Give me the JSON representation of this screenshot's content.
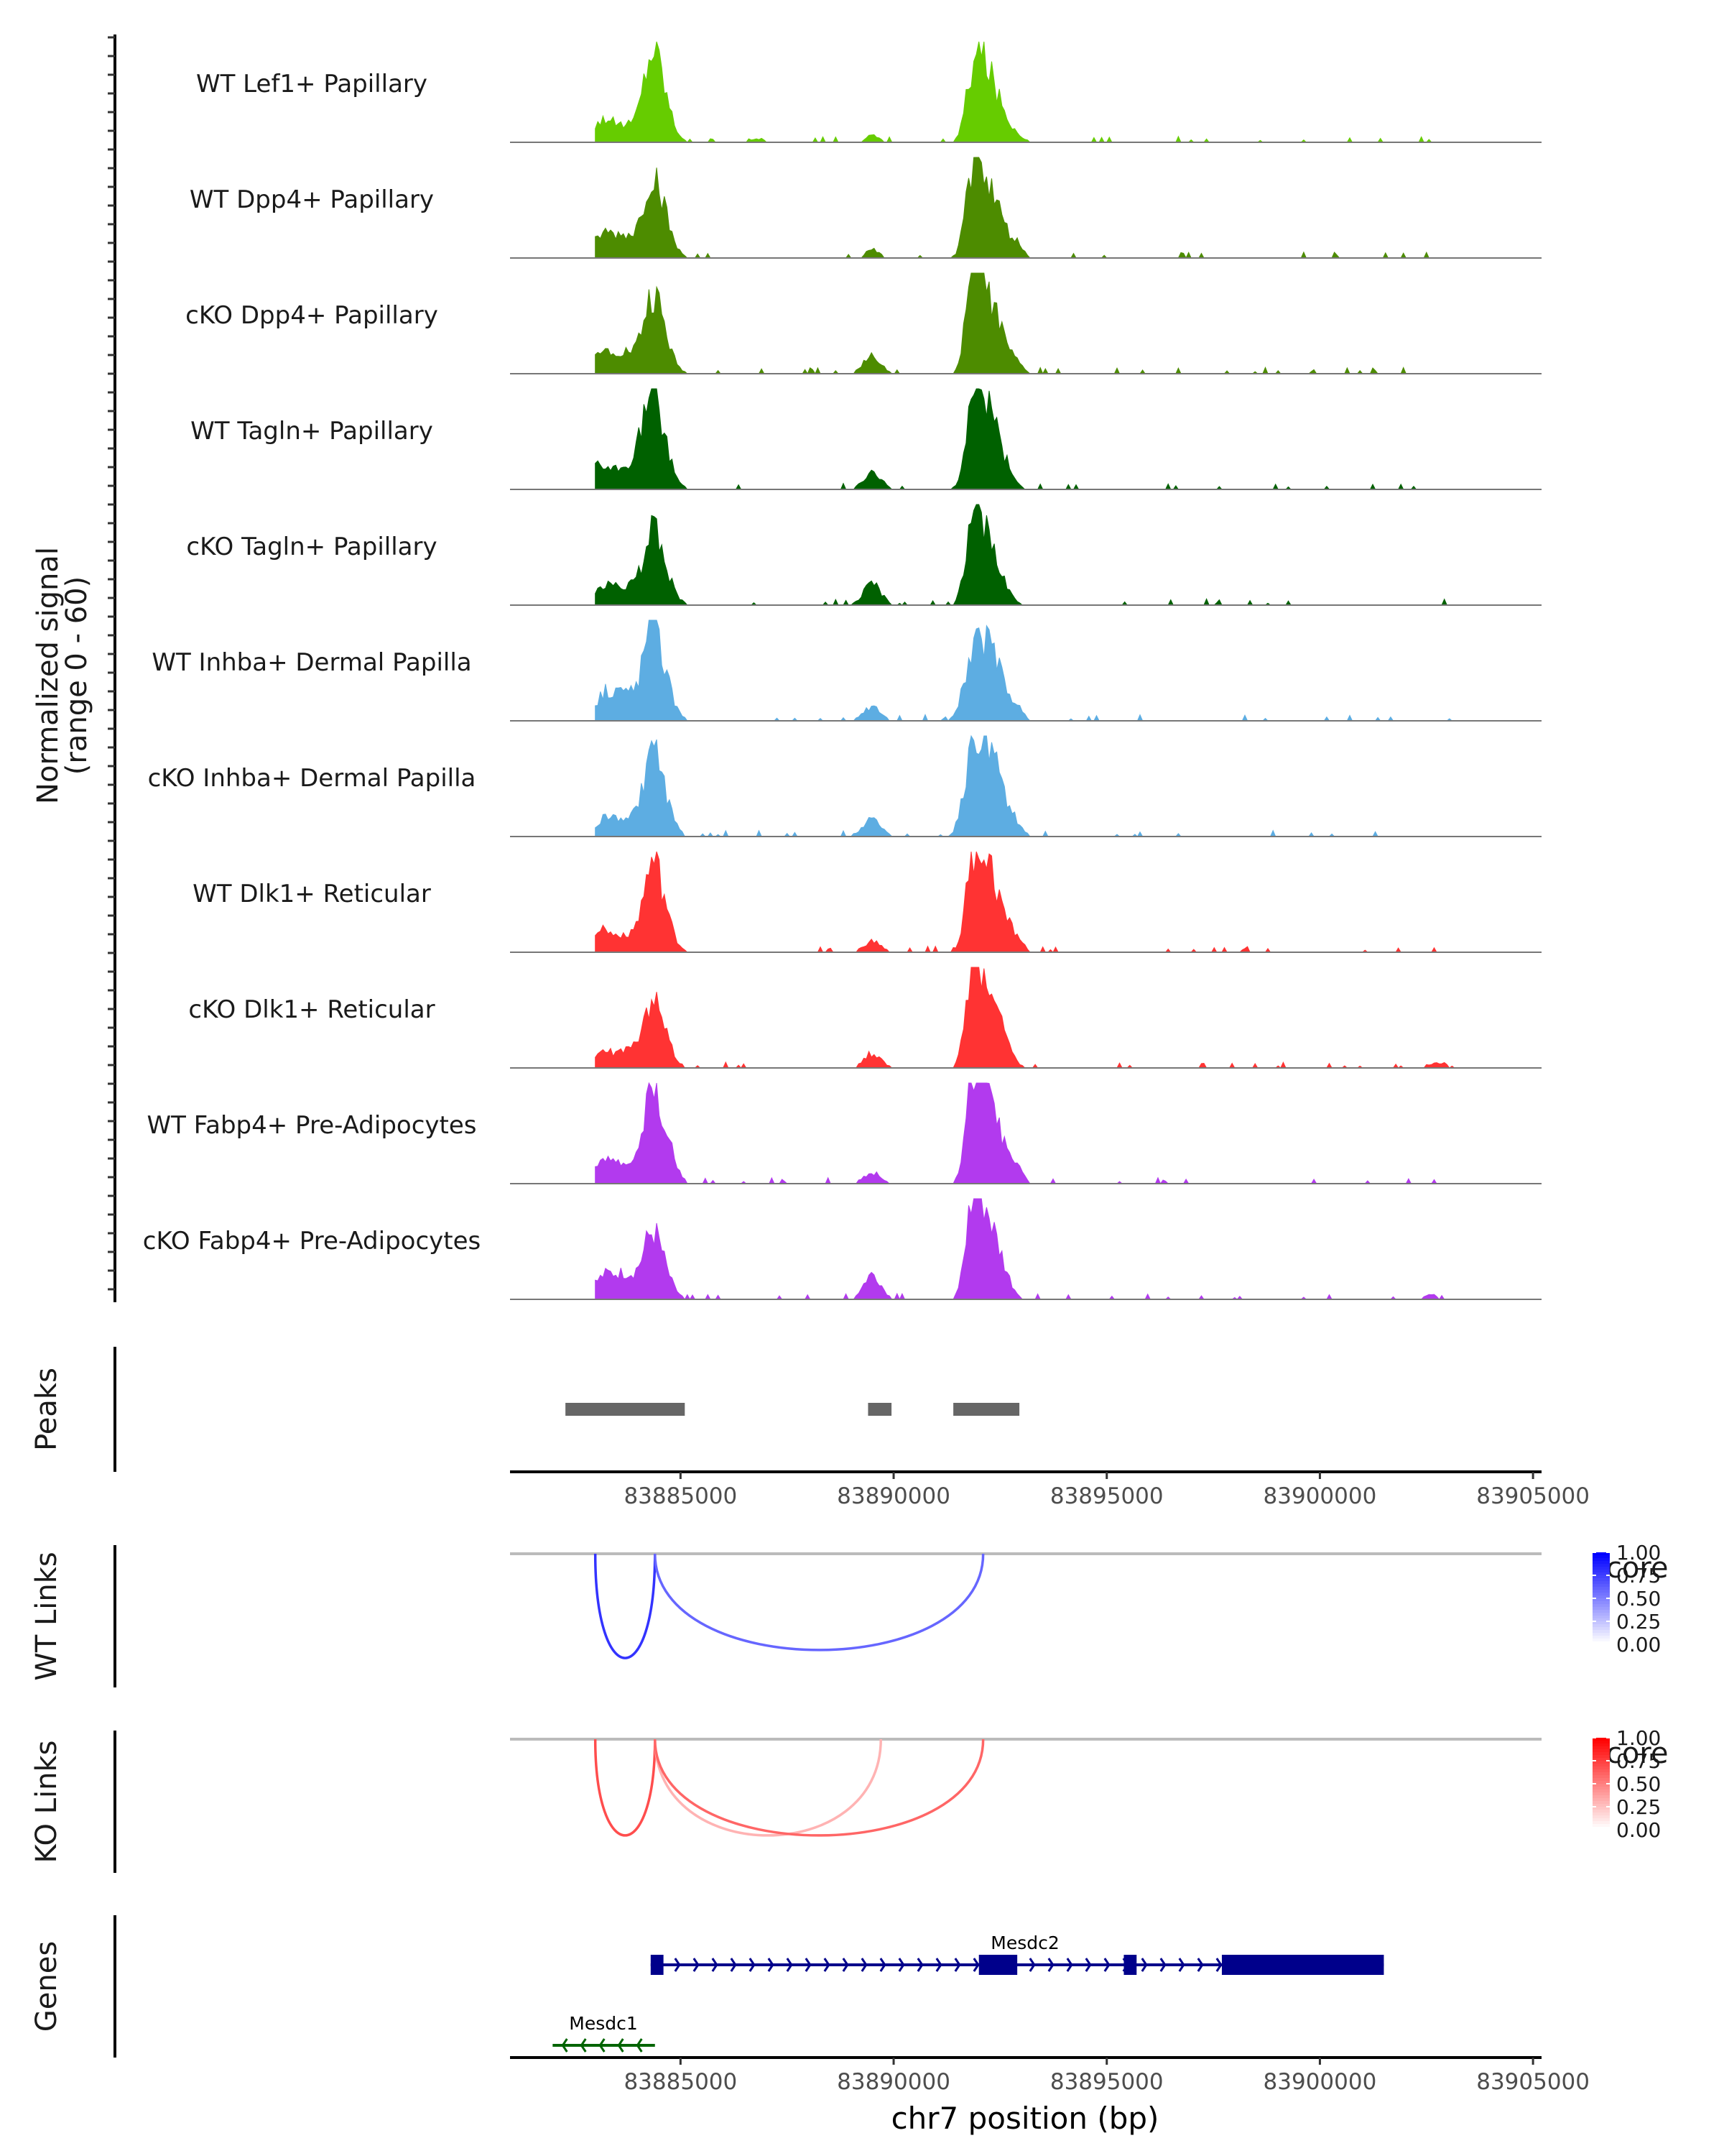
{
  "chart_data": {
    "type": "genome-tracks",
    "chromosome": "chr7",
    "xlim": [
      83881000,
      83905200
    ],
    "xticks": [
      83885000,
      83890000,
      83895000,
      83900000,
      83905000
    ],
    "xtick_labels": [
      "83885000",
      "83890000",
      "83895000",
      "83900000",
      "83905000"
    ],
    "xlabel": "chr7 position (bp)",
    "coverage": {
      "ylabel_line1": "Normalized signal",
      "ylabel_line2": "(range 0 - 60)",
      "ylim": [
        0,
        60
      ],
      "tracks": [
        {
          "label": "WT Lef1+ Papillary",
          "color": "#66CC00",
          "sparse": 0,
          "peaks": [
            [
              83882700,
              250,
              6
            ],
            [
              83883200,
              200,
              10
            ],
            [
              83883700,
              300,
              9
            ],
            [
              83884300,
              200,
              30
            ],
            [
              83884500,
              250,
              28
            ],
            [
              83886800,
              200,
              2
            ],
            [
              83889500,
              150,
              4
            ],
            [
              83891800,
              150,
              20
            ],
            [
              83892050,
              200,
              36
            ],
            [
              83892400,
              250,
              22
            ],
            [
              83892900,
              150,
              3
            ]
          ]
        },
        {
          "label": "WT Dpp4+ Papillary",
          "color": "#4D8C00",
          "sparse": 1,
          "peaks": [
            [
              83882700,
              250,
              6
            ],
            [
              83883200,
              200,
              10
            ],
            [
              83883700,
              300,
              12
            ],
            [
              83884300,
              200,
              25
            ],
            [
              83884500,
              250,
              24
            ],
            [
              83889500,
              150,
              5
            ],
            [
              83891800,
              150,
              30
            ],
            [
              83892050,
              200,
              36
            ],
            [
              83892400,
              250,
              24
            ],
            [
              83892900,
              150,
              6
            ]
          ]
        },
        {
          "label": "cKO Dpp4+ Papillary",
          "color": "#4D8C00",
          "sparse": 2,
          "peaks": [
            [
              83882700,
              250,
              6
            ],
            [
              83883200,
              200,
              9
            ],
            [
              83883700,
              300,
              12
            ],
            [
              83884300,
              200,
              25
            ],
            [
              83884500,
              250,
              22
            ],
            [
              83889500,
              200,
              10
            ],
            [
              83891800,
              150,
              32
            ],
            [
              83892050,
              200,
              38
            ],
            [
              83892400,
              250,
              26
            ],
            [
              83892900,
              150,
              4
            ]
          ]
        },
        {
          "label": "WT Tagln+ Papillary",
          "color": "#006100",
          "sparse": 3,
          "peaks": [
            [
              83882600,
              200,
              6
            ],
            [
              83883000,
              200,
              10
            ],
            [
              83883500,
              300,
              10
            ],
            [
              83884000,
              200,
              12
            ],
            [
              83884300,
              200,
              28
            ],
            [
              83884500,
              250,
              27
            ],
            [
              83889500,
              200,
              10
            ],
            [
              83891800,
              150,
              30
            ],
            [
              83892050,
              200,
              36
            ],
            [
              83892400,
              250,
              26
            ]
          ]
        },
        {
          "label": "cKO Tagln+ Papillary",
          "color": "#006100",
          "sparse": 4,
          "peaks": [
            [
              83882600,
              200,
              6
            ],
            [
              83883200,
              200,
              8
            ],
            [
              83883700,
              300,
              10
            ],
            [
              83884300,
              200,
              22
            ],
            [
              83884500,
              250,
              24
            ],
            [
              83889500,
              200,
              12
            ],
            [
              83891800,
              150,
              30
            ],
            [
              83892050,
              200,
              36
            ],
            [
              83892400,
              250,
              18
            ]
          ]
        },
        {
          "label": "WT Inhba+ Dermal Papilla",
          "color": "#5DADE2",
          "sparse": 5,
          "peaks": [
            [
              83882600,
              200,
              4
            ],
            [
              83883200,
              200,
              12
            ],
            [
              83883700,
              300,
              15
            ],
            [
              83884300,
              200,
              30
            ],
            [
              83884500,
              250,
              28
            ],
            [
              83889500,
              200,
              8
            ],
            [
              83891800,
              200,
              22
            ],
            [
              83892100,
              250,
              26
            ],
            [
              83892400,
              250,
              22
            ],
            [
              83892900,
              150,
              6
            ]
          ]
        },
        {
          "label": "cKO Inhba+ Dermal Papilla",
          "color": "#5DADE2",
          "sparse": 6,
          "peaks": [
            [
              83882500,
              150,
              4
            ],
            [
              83883200,
              200,
              8
            ],
            [
              83883700,
              300,
              10
            ],
            [
              83884300,
              200,
              28
            ],
            [
              83884500,
              250,
              24
            ],
            [
              83889500,
              200,
              10
            ],
            [
              83891700,
              150,
              20
            ],
            [
              83892000,
              200,
              42
            ],
            [
              83892350,
              250,
              38
            ],
            [
              83892900,
              150,
              6
            ]
          ]
        },
        {
          "label": "WT Dlk1+ Reticular",
          "color": "#FF3333",
          "sparse": 7,
          "peaks": [
            [
              83882500,
              150,
              3
            ],
            [
              83883100,
              200,
              12
            ],
            [
              83883700,
              300,
              10
            ],
            [
              83884300,
              200,
              28
            ],
            [
              83884500,
              250,
              26
            ],
            [
              83889500,
              200,
              6
            ],
            [
              83891800,
              150,
              28
            ],
            [
              83892050,
              200,
              42
            ],
            [
              83892400,
              250,
              28
            ],
            [
              83892900,
              150,
              6
            ]
          ]
        },
        {
          "label": "cKO Dlk1+ Reticular",
          "color": "#FF3333",
          "sparse": 8,
          "peaks": [
            [
              83882500,
              150,
              3
            ],
            [
              83883100,
              200,
              8
            ],
            [
              83883700,
              300,
              10
            ],
            [
              83884300,
              200,
              20
            ],
            [
              83884500,
              250,
              20
            ],
            [
              83889500,
              200,
              8
            ],
            [
              83891800,
              150,
              30
            ],
            [
              83892050,
              200,
              38
            ],
            [
              83892400,
              250,
              26
            ],
            [
              83902800,
              200,
              3
            ]
          ]
        },
        {
          "label": "WT Fabp4+ Pre-Adipocytes",
          "color": "#B23AEE",
          "sparse": 9,
          "peaks": [
            [
              83882500,
              150,
              3
            ],
            [
              83883200,
              200,
              12
            ],
            [
              83883700,
              300,
              10
            ],
            [
              83884300,
              200,
              34
            ],
            [
              83884550,
              250,
              28
            ],
            [
              83889500,
              200,
              6
            ],
            [
              83891800,
              150,
              30
            ],
            [
              83892050,
              200,
              46
            ],
            [
              83892400,
              250,
              30
            ],
            [
              83892900,
              150,
              6
            ]
          ]
        },
        {
          "label": "cKO Fabp4+ Pre-Adipocytes",
          "color": "#B23AEE",
          "sparse": 10,
          "peaks": [
            [
              83882800,
              150,
              6
            ],
            [
              83883200,
              200,
              10
            ],
            [
              83883700,
              300,
              14
            ],
            [
              83884300,
              200,
              22
            ],
            [
              83884500,
              250,
              18
            ],
            [
              83889500,
              200,
              14
            ],
            [
              83891800,
              150,
              32
            ],
            [
              83892050,
              200,
              40
            ],
            [
              83892400,
              250,
              26
            ],
            [
              83902600,
              150,
              3
            ]
          ]
        }
      ]
    },
    "peaks": {
      "label": "Peaks",
      "color": "#666666",
      "regions": [
        [
          83882300,
          83885100
        ],
        [
          83889400,
          83889950
        ],
        [
          83891400,
          83892950
        ]
      ]
    },
    "links": [
      {
        "label": "WT Links",
        "legend_title": "score",
        "legend_ticks": [
          "1.00",
          "0.75",
          "0.50",
          "0.25",
          "0.00"
        ],
        "low_color": "#FFFFFF",
        "high_color": "#0000FF",
        "arcs": [
          [
            83883000,
            83884400,
            0.8,
            0.78
          ],
          [
            83884400,
            83892100,
            0.6,
            0.72
          ]
        ]
      },
      {
        "label": "KO Links",
        "legend_title": "score",
        "legend_ticks": [
          "1.00",
          "0.75",
          "0.50",
          "0.25",
          "0.00"
        ],
        "low_color": "#FFFFFF",
        "high_color": "#FF0000",
        "arcs": [
          [
            83883000,
            83884400,
            0.7,
            0.72
          ],
          [
            83884400,
            83889700,
            0.3,
            0.72
          ],
          [
            83884400,
            83892100,
            0.6,
            0.72
          ]
        ]
      }
    ],
    "genes": {
      "label": "Genes",
      "list": [
        {
          "name": "Mesdc2",
          "strand": "+",
          "color": "#00008B",
          "start": 83884300,
          "end": 83901500,
          "exons": [
            [
              83884300,
              83884600
            ],
            [
              83892000,
              83892900
            ],
            [
              83895400,
              83895700
            ],
            [
              83897700,
              83901500
            ]
          ]
        },
        {
          "name": "Mesdc1",
          "strand": "-",
          "color": "#006400",
          "start": 83882000,
          "end": 83884400,
          "exons": []
        }
      ]
    }
  }
}
